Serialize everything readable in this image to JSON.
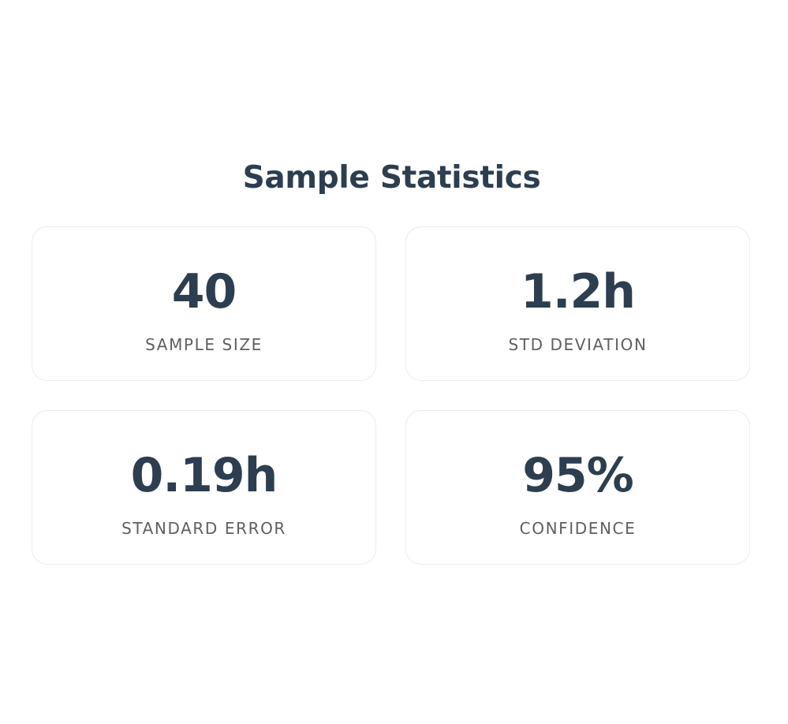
{
  "header": {
    "title": "Sample Statistics"
  },
  "stats": [
    {
      "value": "40",
      "label": "SAMPLE SIZE"
    },
    {
      "value": "1.2h",
      "label": "STD DEVIATION"
    },
    {
      "value": "0.19h",
      "label": "STANDARD ERROR"
    },
    {
      "value": "95%",
      "label": "CONFIDENCE"
    }
  ],
  "colors": {
    "value_text": "#2c3e50",
    "label_text": "#5f5f5f",
    "card_border": "#ececec",
    "background": "#ffffff"
  }
}
